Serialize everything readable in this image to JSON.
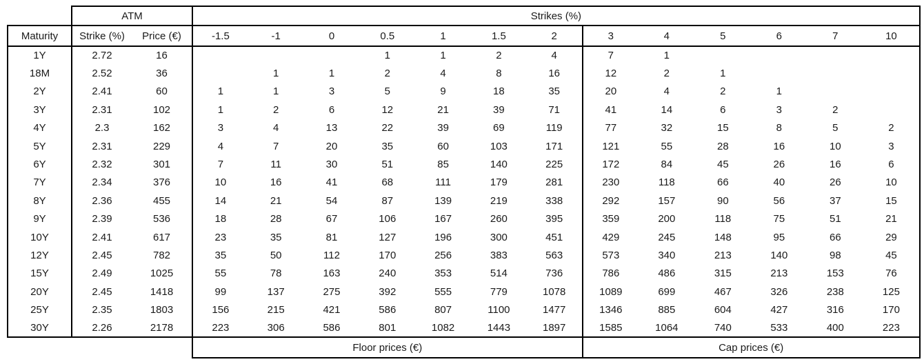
{
  "table": {
    "header": {
      "atm_label": "ATM",
      "strikes_label": "Strikes (%)",
      "maturity_label": "Maturity",
      "strike_col_label": "Strike (%)",
      "price_col_label": "Price (€)",
      "floor_strikes": [
        "-1.5",
        "-1",
        "0",
        "0.5",
        "1",
        "1.5",
        "2"
      ],
      "cap_strikes": [
        "3",
        "4",
        "5",
        "6",
        "7",
        "10"
      ]
    },
    "footer": {
      "floor_label": "Floor prices (€)",
      "cap_label": "Cap prices (€)"
    },
    "rows": [
      {
        "maturity": "1Y",
        "atm_strike": "2.72",
        "atm_price": "16",
        "floor": [
          "",
          "",
          "",
          "1",
          "1",
          "2",
          "4"
        ],
        "cap": [
          "7",
          "1",
          "",
          "",
          "",
          ""
        ]
      },
      {
        "maturity": "18M",
        "atm_strike": "2.52",
        "atm_price": "36",
        "floor": [
          "",
          "1",
          "1",
          "2",
          "4",
          "8",
          "16"
        ],
        "cap": [
          "12",
          "2",
          "1",
          "",
          "",
          ""
        ]
      },
      {
        "maturity": "2Y",
        "atm_strike": "2.41",
        "atm_price": "60",
        "floor": [
          "1",
          "1",
          "3",
          "5",
          "9",
          "18",
          "35"
        ],
        "cap": [
          "20",
          "4",
          "2",
          "1",
          "",
          ""
        ]
      },
      {
        "maturity": "3Y",
        "atm_strike": "2.31",
        "atm_price": "102",
        "floor": [
          "1",
          "2",
          "6",
          "12",
          "21",
          "39",
          "71"
        ],
        "cap": [
          "41",
          "14",
          "6",
          "3",
          "2",
          ""
        ]
      },
      {
        "maturity": "4Y",
        "atm_strike": "2.3",
        "atm_price": "162",
        "floor": [
          "3",
          "4",
          "13",
          "22",
          "39",
          "69",
          "119"
        ],
        "cap": [
          "77",
          "32",
          "15",
          "8",
          "5",
          "2"
        ]
      },
      {
        "maturity": "5Y",
        "atm_strike": "2.31",
        "atm_price": "229",
        "floor": [
          "4",
          "7",
          "20",
          "35",
          "60",
          "103",
          "171"
        ],
        "cap": [
          "121",
          "55",
          "28",
          "16",
          "10",
          "3"
        ]
      },
      {
        "maturity": "6Y",
        "atm_strike": "2.32",
        "atm_price": "301",
        "floor": [
          "7",
          "11",
          "30",
          "51",
          "85",
          "140",
          "225"
        ],
        "cap": [
          "172",
          "84",
          "45",
          "26",
          "16",
          "6"
        ]
      },
      {
        "maturity": "7Y",
        "atm_strike": "2.34",
        "atm_price": "376",
        "floor": [
          "10",
          "16",
          "41",
          "68",
          "111",
          "179",
          "281"
        ],
        "cap": [
          "230",
          "118",
          "66",
          "40",
          "26",
          "10"
        ]
      },
      {
        "maturity": "8Y",
        "atm_strike": "2.36",
        "atm_price": "455",
        "floor": [
          "14",
          "21",
          "54",
          "87",
          "139",
          "219",
          "338"
        ],
        "cap": [
          "292",
          "157",
          "90",
          "56",
          "37",
          "15"
        ]
      },
      {
        "maturity": "9Y",
        "atm_strike": "2.39",
        "atm_price": "536",
        "floor": [
          "18",
          "28",
          "67",
          "106",
          "167",
          "260",
          "395"
        ],
        "cap": [
          "359",
          "200",
          "118",
          "75",
          "51",
          "21"
        ]
      },
      {
        "maturity": "10Y",
        "atm_strike": "2.41",
        "atm_price": "617",
        "floor": [
          "23",
          "35",
          "81",
          "127",
          "196",
          "300",
          "451"
        ],
        "cap": [
          "429",
          "245",
          "148",
          "95",
          "66",
          "29"
        ]
      },
      {
        "maturity": "12Y",
        "atm_strike": "2.45",
        "atm_price": "782",
        "floor": [
          "35",
          "50",
          "112",
          "170",
          "256",
          "383",
          "563"
        ],
        "cap": [
          "573",
          "340",
          "213",
          "140",
          "98",
          "45"
        ]
      },
      {
        "maturity": "15Y",
        "atm_strike": "2.49",
        "atm_price": "1025",
        "floor": [
          "55",
          "78",
          "163",
          "240",
          "353",
          "514",
          "736"
        ],
        "cap": [
          "786",
          "486",
          "315",
          "213",
          "153",
          "76"
        ]
      },
      {
        "maturity": "20Y",
        "atm_strike": "2.45",
        "atm_price": "1418",
        "floor": [
          "99",
          "137",
          "275",
          "392",
          "555",
          "779",
          "1078"
        ],
        "cap": [
          "1089",
          "699",
          "467",
          "326",
          "238",
          "125"
        ]
      },
      {
        "maturity": "25Y",
        "atm_strike": "2.35",
        "atm_price": "1803",
        "floor": [
          "156",
          "215",
          "421",
          "586",
          "807",
          "1100",
          "1477"
        ],
        "cap": [
          "1346",
          "885",
          "604",
          "427",
          "316",
          "170"
        ]
      },
      {
        "maturity": "30Y",
        "atm_strike": "2.26",
        "atm_price": "2178",
        "floor": [
          "223",
          "306",
          "586",
          "801",
          "1082",
          "1443",
          "1897"
        ],
        "cap": [
          "1585",
          "1064",
          "740",
          "533",
          "400",
          "223"
        ]
      }
    ]
  },
  "colors": {
    "border": "#000000",
    "text": "#1a1a1a",
    "background": "#ffffff"
  }
}
